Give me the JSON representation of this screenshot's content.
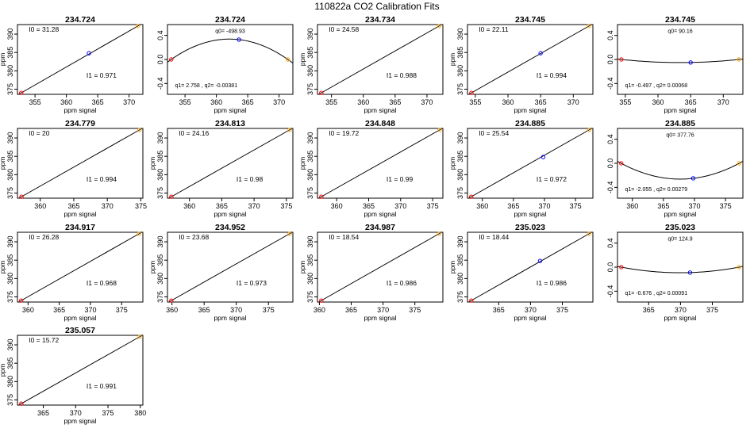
{
  "title": "110822a   CO2 Calibration Fits",
  "axis_labels": {
    "x": "ppm signal",
    "y": "ppm"
  },
  "colors": {
    "background": "#ffffff",
    "line": "#000000",
    "point_low": "#ff0000",
    "point_mid": "#0000ff",
    "point_high": "#ffa500",
    "frame": "#000000"
  },
  "chart_data": [
    {
      "type": "scatter",
      "title": "234.724",
      "xlabel": "ppm signal",
      "ylabel": "ppm",
      "xlim": [
        352.2,
        372.2
      ],
      "ylim": [
        373.6,
        392.6
      ],
      "xticks": [
        355,
        360,
        365,
        370
      ],
      "yticks": [
        375,
        380,
        385,
        390
      ],
      "points": [
        [
          352.8,
          374.0
        ],
        [
          363.6,
          384.8
        ],
        [
          371.4,
          392.2
        ]
      ],
      "annotations": [
        "I0 =  31.28",
        "I1 =  0.971"
      ]
    },
    {
      "type": "residual",
      "title": "234.724",
      "xlabel": "ppm signal",
      "ylabel": "",
      "xlim": [
        352.2,
        372.2
      ],
      "ylim": [
        -0.58,
        0.58
      ],
      "xticks": [
        355,
        360,
        365,
        370
      ],
      "yticks": [
        0.4,
        0.0,
        -0.4
      ],
      "ytick_labels": [
        "0.4",
        "0.0",
        "-0.4"
      ],
      "points": [
        [
          352.8,
          0.0
        ],
        [
          363.6,
          0.33
        ],
        [
          371.4,
          0.0
        ]
      ],
      "annotations": [
        "q0= -498.93",
        "q1= 2.758 , q2= -0.00381"
      ]
    },
    {
      "type": "scatter",
      "title": "234.734",
      "xlabel": "ppm signal",
      "ylabel": "ppm",
      "xlim": [
        352.8,
        372.5
      ],
      "ylim": [
        373.6,
        392.6
      ],
      "xticks": [
        355,
        360,
        365,
        370
      ],
      "yticks": [
        375,
        380,
        385,
        390
      ],
      "points": [
        [
          353.4,
          374.0
        ],
        [
          371.9,
          392.2
        ]
      ],
      "annotations": [
        "I0 =  24.58",
        "I1 =  0.988"
      ]
    },
    {
      "type": "scatter",
      "title": "234.745",
      "xlabel": "ppm signal",
      "ylabel": "ppm",
      "xlim": [
        353.8,
        373.0
      ],
      "ylim": [
        373.6,
        392.6
      ],
      "xticks": [
        355,
        360,
        365,
        370
      ],
      "yticks": [
        375,
        380,
        385,
        390
      ],
      "points": [
        [
          354.4,
          374.0
        ],
        [
          365.0,
          384.8
        ],
        [
          372.4,
          392.2
        ]
      ],
      "annotations": [
        "I0 =  22.11",
        "I1 =  0.994"
      ]
    },
    {
      "type": "residual",
      "title": "234.745",
      "xlabel": "ppm signal",
      "ylabel": "",
      "xlim": [
        353.8,
        373.0
      ],
      "ylim": [
        -0.58,
        0.58
      ],
      "xticks": [
        355,
        360,
        365,
        370
      ],
      "yticks": [
        0.4,
        0.0,
        -0.4
      ],
      "ytick_labels": [
        "0.4",
        "0.0",
        "-0.4"
      ],
      "points": [
        [
          354.4,
          0.0
        ],
        [
          365.0,
          -0.05
        ],
        [
          372.4,
          0.0
        ]
      ],
      "annotations": [
        "q0= 90.16",
        "q1= -0.497 , q2= 0.00068"
      ]
    },
    {
      "type": "scatter",
      "title": "234.779",
      "xlabel": "ppm signal",
      "ylabel": "ppm",
      "xlim": [
        356.6,
        375.3
      ],
      "ylim": [
        373.6,
        392.6
      ],
      "xticks": [
        360,
        365,
        370,
        375
      ],
      "yticks": [
        375,
        380,
        385,
        390
      ],
      "points": [
        [
          357.2,
          374.0
        ],
        [
          374.8,
          392.2
        ]
      ],
      "annotations": [
        "I0 =  20",
        "I1 =  0.994"
      ]
    },
    {
      "type": "scatter",
      "title": "234.813",
      "xlabel": "ppm signal",
      "ylabel": "ppm",
      "xlim": [
        356.6,
        376.0
      ],
      "ylim": [
        373.6,
        392.6
      ],
      "xticks": [
        360,
        365,
        370,
        375
      ],
      "yticks": [
        375,
        380,
        385,
        390
      ],
      "points": [
        [
          357.2,
          374.0
        ],
        [
          375.5,
          392.2
        ]
      ],
      "annotations": [
        "I0 =  24.16",
        "I1 =  0.98"
      ]
    },
    {
      "type": "scatter",
      "title": "234.848",
      "xlabel": "ppm signal",
      "ylabel": "ppm",
      "xlim": [
        357.0,
        376.6
      ],
      "ylim": [
        373.6,
        392.6
      ],
      "xticks": [
        360,
        365,
        370,
        375
      ],
      "yticks": [
        375,
        380,
        385,
        390
      ],
      "points": [
        [
          357.6,
          374.0
        ],
        [
          376.1,
          392.2
        ]
      ],
      "annotations": [
        "I0 =  19.72",
        "I1 =  0.99"
      ]
    },
    {
      "type": "scatter",
      "title": "234.885",
      "xlabel": "ppm signal",
      "ylabel": "ppm",
      "xlim": [
        357.6,
        377.8
      ],
      "ylim": [
        373.6,
        392.6
      ],
      "xticks": [
        360,
        365,
        370,
        375
      ],
      "yticks": [
        375,
        380,
        385,
        390
      ],
      "points": [
        [
          358.2,
          374.0
        ],
        [
          369.8,
          384.8
        ],
        [
          377.2,
          392.2
        ]
      ],
      "annotations": [
        "I0 =  25.54",
        "I1 =  0.972"
      ]
    },
    {
      "type": "residual",
      "title": "234.885",
      "xlabel": "ppm signal",
      "ylabel": "",
      "xlim": [
        357.6,
        377.8
      ],
      "ylim": [
        -0.58,
        0.58
      ],
      "xticks": [
        360,
        365,
        370,
        375
      ],
      "yticks": [
        0.4,
        0.0,
        -0.4
      ],
      "ytick_labels": [
        "0.4",
        "0.0",
        "-0.4"
      ],
      "points": [
        [
          358.2,
          0.0
        ],
        [
          369.8,
          -0.25
        ],
        [
          377.2,
          0.0
        ]
      ],
      "annotations": [
        "q0= 377.76",
        "q1= -2.055 , q2= 0.00279"
      ]
    },
    {
      "type": "scatter",
      "title": "234.917",
      "xlabel": "ppm signal",
      "ylabel": "ppm",
      "xlim": [
        358.3,
        378.4
      ],
      "ylim": [
        373.6,
        392.6
      ],
      "xticks": [
        360,
        365,
        370,
        375
      ],
      "yticks": [
        375,
        380,
        385,
        390
      ],
      "points": [
        [
          358.9,
          374.0
        ],
        [
          377.8,
          392.2
        ]
      ],
      "annotations": [
        "I0 =  26.28",
        "I1 =  0.968"
      ]
    },
    {
      "type": "scatter",
      "title": "234.952",
      "xlabel": "ppm signal",
      "ylabel": "ppm",
      "xlim": [
        359.3,
        378.8
      ],
      "ylim": [
        373.6,
        392.6
      ],
      "xticks": [
        360,
        365,
        370,
        375
      ],
      "yticks": [
        375,
        380,
        385,
        390
      ],
      "points": [
        [
          359.9,
          374.0
        ],
        [
          378.3,
          392.2
        ]
      ],
      "annotations": [
        "I0 =  23.68",
        "I1 =  0.973"
      ]
    },
    {
      "type": "scatter",
      "title": "234.987",
      "xlabel": "ppm signal",
      "ylabel": "ppm",
      "xlim": [
        359.7,
        379.4
      ],
      "ylim": [
        373.6,
        392.6
      ],
      "xticks": [
        360,
        365,
        370,
        375
      ],
      "yticks": [
        375,
        380,
        385,
        390
      ],
      "points": [
        [
          360.3,
          374.0
        ],
        [
          378.8,
          392.2
        ]
      ],
      "annotations": [
        "I0 =  18.54",
        "I1 =  0.986"
      ]
    },
    {
      "type": "scatter",
      "title": "235.023",
      "xlabel": "ppm signal",
      "ylabel": "ppm",
      "xlim": [
        360.1,
        379.8
      ],
      "ylim": [
        373.6,
        392.6
      ],
      "xticks": [
        365,
        370,
        375
      ],
      "yticks": [
        375,
        380,
        385,
        390
      ],
      "points": [
        [
          360.7,
          374.0
        ],
        [
          371.5,
          384.8
        ],
        [
          379.2,
          392.2
        ]
      ],
      "annotations": [
        "I0 =  18.44",
        "I1 =  0.986"
      ]
    },
    {
      "type": "residual",
      "title": "235.023",
      "xlabel": "ppm signal",
      "ylabel": "",
      "xlim": [
        360.1,
        379.8
      ],
      "ylim": [
        -0.58,
        0.58
      ],
      "xticks": [
        365,
        370,
        375
      ],
      "yticks": [
        0.4,
        0.0,
        -0.4
      ],
      "ytick_labels": [
        "0.4",
        "0.0",
        "-0.4"
      ],
      "points": [
        [
          360.7,
          0.0
        ],
        [
          371.5,
          -0.09
        ],
        [
          379.2,
          0.0
        ]
      ],
      "annotations": [
        "q0= 124.9",
        "q1= -0.676 , q2= 0.00091"
      ]
    },
    {
      "type": "scatter",
      "title": "235.057",
      "xlabel": "ppm signal",
      "ylabel": "ppm",
      "xlim": [
        361.0,
        380.4
      ],
      "ylim": [
        373.6,
        392.6
      ],
      "xticks": [
        365,
        370,
        375,
        380
      ],
      "yticks": [
        375,
        380,
        385,
        390
      ],
      "points": [
        [
          361.6,
          374.0
        ],
        [
          379.9,
          392.2
        ]
      ],
      "annotations": [
        "I0 =  15.72",
        "I1 =  0.991"
      ]
    }
  ]
}
